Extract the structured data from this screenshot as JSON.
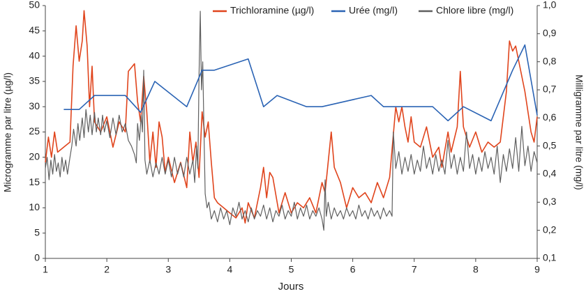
{
  "chart_data": {
    "type": "line",
    "xlabel": "Jours",
    "ylabel": "Microgramme par litre (µg/l)",
    "y2label": "Milligramme par litre (mg/l)",
    "xlim": [
      1,
      9
    ],
    "xticks": [
      1,
      2,
      3,
      4,
      5,
      6,
      7,
      8,
      9
    ],
    "ylim": [
      0,
      50
    ],
    "yticks": [
      0,
      5,
      10,
      15,
      20,
      25,
      30,
      35,
      40,
      45,
      50
    ],
    "y2lim": [
      0.1,
      1.0
    ],
    "y2ticks": [
      {
        "value": 0.1,
        "label": "0,1"
      },
      {
        "value": 0.2,
        "label": "0,2"
      },
      {
        "value": 0.3,
        "label": "0,3"
      },
      {
        "value": 0.4,
        "label": "0,4"
      },
      {
        "value": 0.5,
        "label": "0,5"
      },
      {
        "value": 0.6,
        "label": "0,6"
      },
      {
        "value": 0.7,
        "label": "0,7"
      },
      {
        "value": 0.8,
        "label": "0,8"
      },
      {
        "value": 0.9,
        "label": "0,9"
      },
      {
        "value": 1.0,
        "label": "1,0"
      }
    ],
    "legend": "top",
    "series": [
      {
        "name": "Trichloramine (µg/l)",
        "color": "#e0441c",
        "axis": "y",
        "x": [
          1.0,
          1.05,
          1.1,
          1.15,
          1.2,
          1.3,
          1.4,
          1.45,
          1.5,
          1.55,
          1.6,
          1.63,
          1.68,
          1.72,
          1.76,
          1.8,
          1.9,
          2.0,
          2.1,
          2.2,
          2.3,
          2.35,
          2.45,
          2.5,
          2.55,
          2.6,
          2.65,
          2.7,
          2.75,
          2.8,
          2.85,
          2.9,
          2.95,
          3.0,
          3.1,
          3.2,
          3.3,
          3.35,
          3.4,
          3.45,
          3.5,
          3.55,
          3.6,
          3.65,
          3.7,
          3.75,
          3.8,
          3.9,
          4.0,
          4.1,
          4.2,
          4.25,
          4.3,
          4.4,
          4.5,
          4.55,
          4.6,
          4.65,
          4.7,
          4.8,
          4.9,
          5.0,
          5.1,
          5.2,
          5.3,
          5.4,
          5.5,
          5.55,
          5.65,
          5.7,
          5.8,
          5.9,
          6.0,
          6.1,
          6.2,
          6.3,
          6.4,
          6.5,
          6.6,
          6.65,
          6.7,
          6.75,
          6.8,
          6.85,
          6.9,
          6.95,
          7.0,
          7.1,
          7.2,
          7.3,
          7.4,
          7.45,
          7.55,
          7.6,
          7.7,
          7.75,
          7.8,
          7.9,
          8.0,
          8.1,
          8.2,
          8.3,
          8.4,
          8.5,
          8.55,
          8.6,
          8.65,
          8.7,
          8.75,
          8.8,
          8.9,
          8.95,
          9.0
        ],
        "values": [
          19,
          24,
          20,
          25,
          21,
          22,
          23,
          38,
          46,
          39,
          43,
          49,
          42,
          30,
          38,
          27,
          25,
          28,
          22,
          27,
          25,
          37,
          38.5,
          31,
          27,
          36,
          29,
          19,
          25,
          18,
          27,
          24,
          17,
          20,
          15,
          19,
          14,
          25,
          19,
          23,
          16,
          29,
          24,
          27,
          19,
          12,
          11,
          10,
          9,
          8,
          10,
          7,
          11,
          8,
          14,
          18,
          12,
          17,
          16,
          9,
          13,
          9,
          11,
          10,
          12,
          9,
          15,
          13,
          25,
          18,
          15,
          10,
          14,
          12,
          13,
          11,
          15,
          12,
          16,
          23,
          30,
          27,
          30,
          26,
          23,
          28,
          23,
          22,
          26,
          20,
          22,
          18,
          25,
          21,
          26,
          37,
          26,
          22,
          25,
          21,
          23,
          22,
          23,
          33,
          43,
          41,
          42,
          39,
          36,
          33,
          25,
          23,
          28
        ]
      },
      {
        "name": "Urée (mg/l)",
        "color": "#2a63b4",
        "axis": "y2",
        "x": [
          1.3,
          1.55,
          1.8,
          2.0,
          2.3,
          2.55,
          2.78,
          3.3,
          3.55,
          3.75,
          4.3,
          4.55,
          4.77,
          5.25,
          5.5,
          6.3,
          6.5,
          7.3,
          7.55,
          7.8,
          8.25,
          8.6,
          8.8,
          9.0
        ],
        "values": [
          0.63,
          0.63,
          0.68,
          0.68,
          0.68,
          0.62,
          0.73,
          0.64,
          0.77,
          0.77,
          0.81,
          0.64,
          0.68,
          0.64,
          0.64,
          0.68,
          0.64,
          0.64,
          0.59,
          0.64,
          0.59,
          0.77,
          0.86,
          0.61
        ]
      },
      {
        "name": "Chlore libre (mg/l)",
        "color": "#5f5f5f",
        "axis": "y2",
        "x": [
          1.0,
          1.03,
          1.06,
          1.09,
          1.12,
          1.15,
          1.18,
          1.21,
          1.24,
          1.27,
          1.3,
          1.33,
          1.36,
          1.4,
          1.43,
          1.46,
          1.5,
          1.53,
          1.56,
          1.6,
          1.63,
          1.66,
          1.7,
          1.73,
          1.76,
          1.8,
          1.83,
          1.86,
          1.9,
          1.93,
          1.96,
          2.0,
          2.05,
          2.1,
          2.15,
          2.2,
          2.25,
          2.3,
          2.35,
          2.4,
          2.45,
          2.48,
          2.5,
          2.53,
          2.56,
          2.58,
          2.6,
          2.62,
          2.65,
          2.7,
          2.75,
          2.8,
          2.85,
          2.9,
          2.95,
          3.0,
          3.05,
          3.1,
          3.15,
          3.2,
          3.25,
          3.3,
          3.35,
          3.4,
          3.43,
          3.46,
          3.48,
          3.5,
          3.52,
          3.54,
          3.56,
          3.58,
          3.6,
          3.63,
          3.66,
          3.7,
          3.75,
          3.8,
          3.85,
          3.9,
          3.95,
          4.0,
          4.05,
          4.1,
          4.15,
          4.2,
          4.25,
          4.3,
          4.35,
          4.4,
          4.45,
          4.5,
          4.55,
          4.6,
          4.65,
          4.7,
          4.75,
          4.8,
          4.85,
          4.9,
          4.95,
          5.0,
          5.05,
          5.1,
          5.15,
          5.2,
          5.25,
          5.3,
          5.35,
          5.4,
          5.45,
          5.5,
          5.53,
          5.55,
          5.57,
          5.6,
          5.65,
          5.7,
          5.75,
          5.8,
          5.85,
          5.9,
          5.95,
          6.0,
          6.05,
          6.1,
          6.15,
          6.2,
          6.25,
          6.3,
          6.35,
          6.4,
          6.45,
          6.5,
          6.55,
          6.6,
          6.64,
          6.66,
          6.7,
          6.75,
          6.8,
          6.85,
          6.9,
          6.95,
          7.0,
          7.05,
          7.1,
          7.15,
          7.2,
          7.25,
          7.3,
          7.35,
          7.4,
          7.45,
          7.5,
          7.55,
          7.6,
          7.65,
          7.7,
          7.75,
          7.8,
          7.85,
          7.9,
          7.95,
          8.0,
          8.05,
          8.1,
          8.15,
          8.2,
          8.25,
          8.3,
          8.35,
          8.4,
          8.45,
          8.5,
          8.55,
          8.6,
          8.65,
          8.7,
          8.75,
          8.8,
          8.85,
          8.9,
          8.95,
          9.0
        ],
        "values": [
          0.42,
          0.46,
          0.38,
          0.45,
          0.4,
          0.47,
          0.41,
          0.44,
          0.39,
          0.46,
          0.41,
          0.45,
          0.4,
          0.46,
          0.5,
          0.56,
          0.5,
          0.58,
          0.52,
          0.6,
          0.53,
          0.63,
          0.55,
          0.61,
          0.54,
          0.62,
          0.55,
          0.6,
          0.54,
          0.61,
          0.55,
          0.59,
          0.53,
          0.6,
          0.54,
          0.61,
          0.55,
          0.58,
          0.52,
          0.5,
          0.47,
          0.44,
          0.58,
          0.52,
          0.61,
          0.55,
          0.77,
          0.45,
          0.4,
          0.45,
          0.39,
          0.44,
          0.4,
          0.46,
          0.4,
          0.45,
          0.39,
          0.46,
          0.4,
          0.44,
          0.39,
          0.46,
          0.4,
          0.45,
          0.37,
          0.5,
          0.42,
          0.75,
          0.98,
          0.7,
          0.8,
          0.55,
          0.33,
          0.28,
          0.3,
          0.24,
          0.27,
          0.23,
          0.28,
          0.24,
          0.27,
          0.22,
          0.28,
          0.25,
          0.3,
          0.24,
          0.27,
          0.23,
          0.28,
          0.24,
          0.27,
          0.25,
          0.29,
          0.24,
          0.28,
          0.23,
          0.27,
          0.25,
          0.29,
          0.24,
          0.27,
          0.25,
          0.3,
          0.24,
          0.28,
          0.25,
          0.29,
          0.24,
          0.27,
          0.25,
          0.28,
          0.24,
          0.2,
          0.38,
          0.25,
          0.3,
          0.24,
          0.28,
          0.25,
          0.27,
          0.24,
          0.28,
          0.25,
          0.27,
          0.24,
          0.29,
          0.25,
          0.27,
          0.24,
          0.28,
          0.25,
          0.27,
          0.24,
          0.28,
          0.25,
          0.27,
          0.25,
          0.55,
          0.42,
          0.48,
          0.4,
          0.46,
          0.41,
          0.47,
          0.4,
          0.45,
          0.41,
          0.5,
          0.42,
          0.46,
          0.4,
          0.47,
          0.41,
          0.45,
          0.4,
          0.52,
          0.42,
          0.47,
          0.4,
          0.46,
          0.41,
          0.55,
          0.42,
          0.47,
          0.4,
          0.46,
          0.41,
          0.48,
          0.42,
          0.46,
          0.4,
          0.5,
          0.37,
          0.47,
          0.41,
          0.49,
          0.42,
          0.53,
          0.41,
          0.57,
          0.43,
          0.5,
          0.41,
          0.48,
          0.44
        ]
      }
    ]
  }
}
